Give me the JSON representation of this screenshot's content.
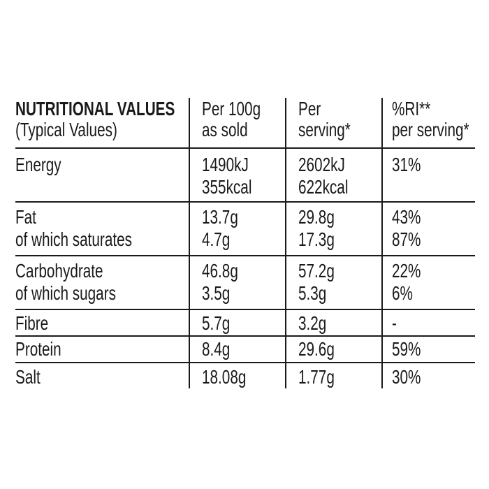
{
  "table": {
    "header": [
      [
        "NUTRITIONAL VALUES",
        "(Typical Values)"
      ],
      [
        "Per 100g",
        "as sold"
      ],
      [
        "Per",
        "serving*"
      ],
      [
        "%RI**",
        "per serving*"
      ]
    ],
    "rows": [
      [
        [
          "Energy"
        ],
        [
          "1490kJ",
          "355kcal"
        ],
        [
          "2602kJ",
          "622kcal"
        ],
        [
          "31%"
        ]
      ],
      [
        [
          "Fat",
          "of which saturates"
        ],
        [
          "13.7g",
          "4.7g"
        ],
        [
          "29.8g",
          "17.3g"
        ],
        [
          "43%",
          "87%"
        ]
      ],
      [
        [
          "Carbohydrate",
          "of which sugars"
        ],
        [
          "46.8g",
          "3.5g"
        ],
        [
          "57.2g",
          "5.3g"
        ],
        [
          "22%",
          "6%"
        ]
      ],
      [
        [
          "Fibre"
        ],
        [
          "5.7g"
        ],
        [
          "3.2g"
        ],
        [
          "-"
        ]
      ],
      [
        [
          "Protein"
        ],
        [
          "8.4g"
        ],
        [
          "29.6g"
        ],
        [
          "59%"
        ]
      ],
      [
        [
          "Salt"
        ],
        [
          "18.08g"
        ],
        [
          "1.77g"
        ],
        [
          "30%"
        ]
      ]
    ]
  }
}
